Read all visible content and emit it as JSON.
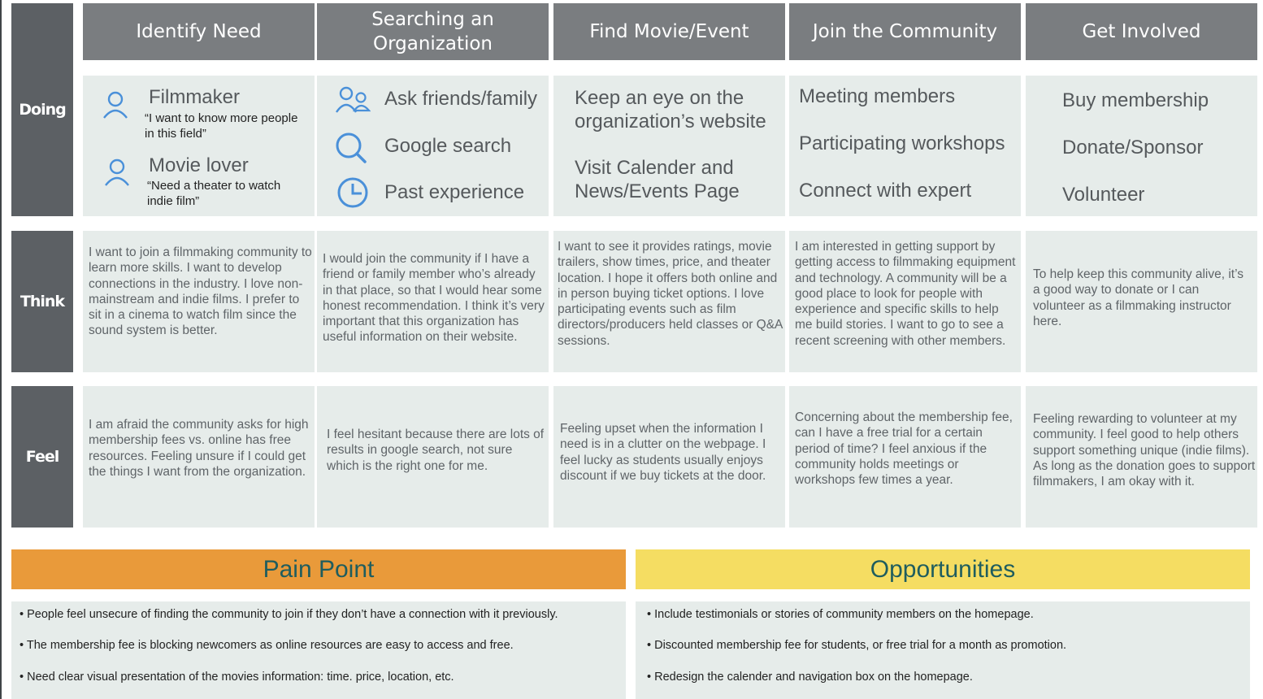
{
  "columns": [
    "Identify Need",
    "Searching an Organization",
    "Find Movie/Event",
    "Join the Community",
    "Get Involved"
  ],
  "rows": [
    "Doing",
    "Think",
    "Feel"
  ],
  "doing": {
    "identify": {
      "persona1_name": "Filmmaker",
      "persona1_quote": "“I want to know more people in this field”",
      "persona2_name": "Movie lover",
      "persona2_quote": "“Need a theater to watch indie film”"
    },
    "searching": [
      "Ask friends/family",
      "Google search",
      "Past experience"
    ],
    "find": [
      "Keep an eye on the organization’s website",
      "Visit Calender and News/Events Page"
    ],
    "join": [
      "Meeting members",
      "Participating workshops",
      "Connect with expert"
    ],
    "involved": [
      "Buy membership",
      "Donate/Sponsor",
      "Volunteer"
    ]
  },
  "think": [
    "I want to join a filmmaking community to learn more skills. I want to develop connections in the industry. I love non-mainstream and indie films. I prefer to sit in a cinema to watch film since the sound system is better.",
    "I would join the community if I have a friend or family member who’s already in that place, so that I would hear some honest recommendation. I think it’s very important that this organization has useful information on their website.",
    "I want to see it provides ratings, movie trailers, show times, price, and theater location. I hope it offers both online and in person buying ticket options. I love participating events such as film directors/producers held classes or Q&A sessions.",
    "I am interested in getting support by getting access to filmmaking equipment and technology. A community will be a good place to look for people with experience and specific skills to help me build stories. I want to go to see a recent screening with other members.",
    "To help keep this community alive, it’s a good way to donate or I can volunteer as a filmmaking instructor here."
  ],
  "feel": [
    "I am afraid the community asks for high membership fees vs. online has free resources. Feeling unsure if I could get the things I want from the organization.",
    "I feel hesitant because there are lots of results in google search, not sure which is the right one for me.",
    "Feeling upset when the information I need is in a clutter on the webpage. I feel lucky as students usually enjoys discount if we buy tickets at the door.",
    "Concerning about the membership fee, can I have a free trial for a certain period of time? I feel anxious if the community holds meetings or workshops few times a year.",
    "Feeling rewarding to volunteer at my community. I feel good to help others support something unique (indie films). As long as the donation goes to support filmmakers, I am okay with it."
  ],
  "pain_point": {
    "title": "Pain Point",
    "items": [
      "• People feel unsecure of finding the community to join if they don’t have a connection with it previously.",
      "• The membership fee is blocking newcomers as online resources are easy to access and free.",
      "• Need clear visual presentation of the movies information: time. price, location, etc."
    ]
  },
  "opportunities": {
    "title": "Opportunities",
    "items": [
      "• Include testimonials or stories of community members on the homepage.",
      "• Discounted membership fee for students, or free trial for a month as promotion.",
      "• Redesign the calender and navigation box on the homepage."
    ]
  },
  "colors": {
    "header": "#7a7d80",
    "row_label": "#5c6064",
    "cell": "#e6ecea",
    "pain": "#e99a3a",
    "opportunities": "#f5dd62",
    "icon_blue": "#4a90d9",
    "heading_teal": "#1f5d5e"
  },
  "icons": [
    "user-icon",
    "users-icon",
    "search-icon",
    "clock-icon"
  ]
}
